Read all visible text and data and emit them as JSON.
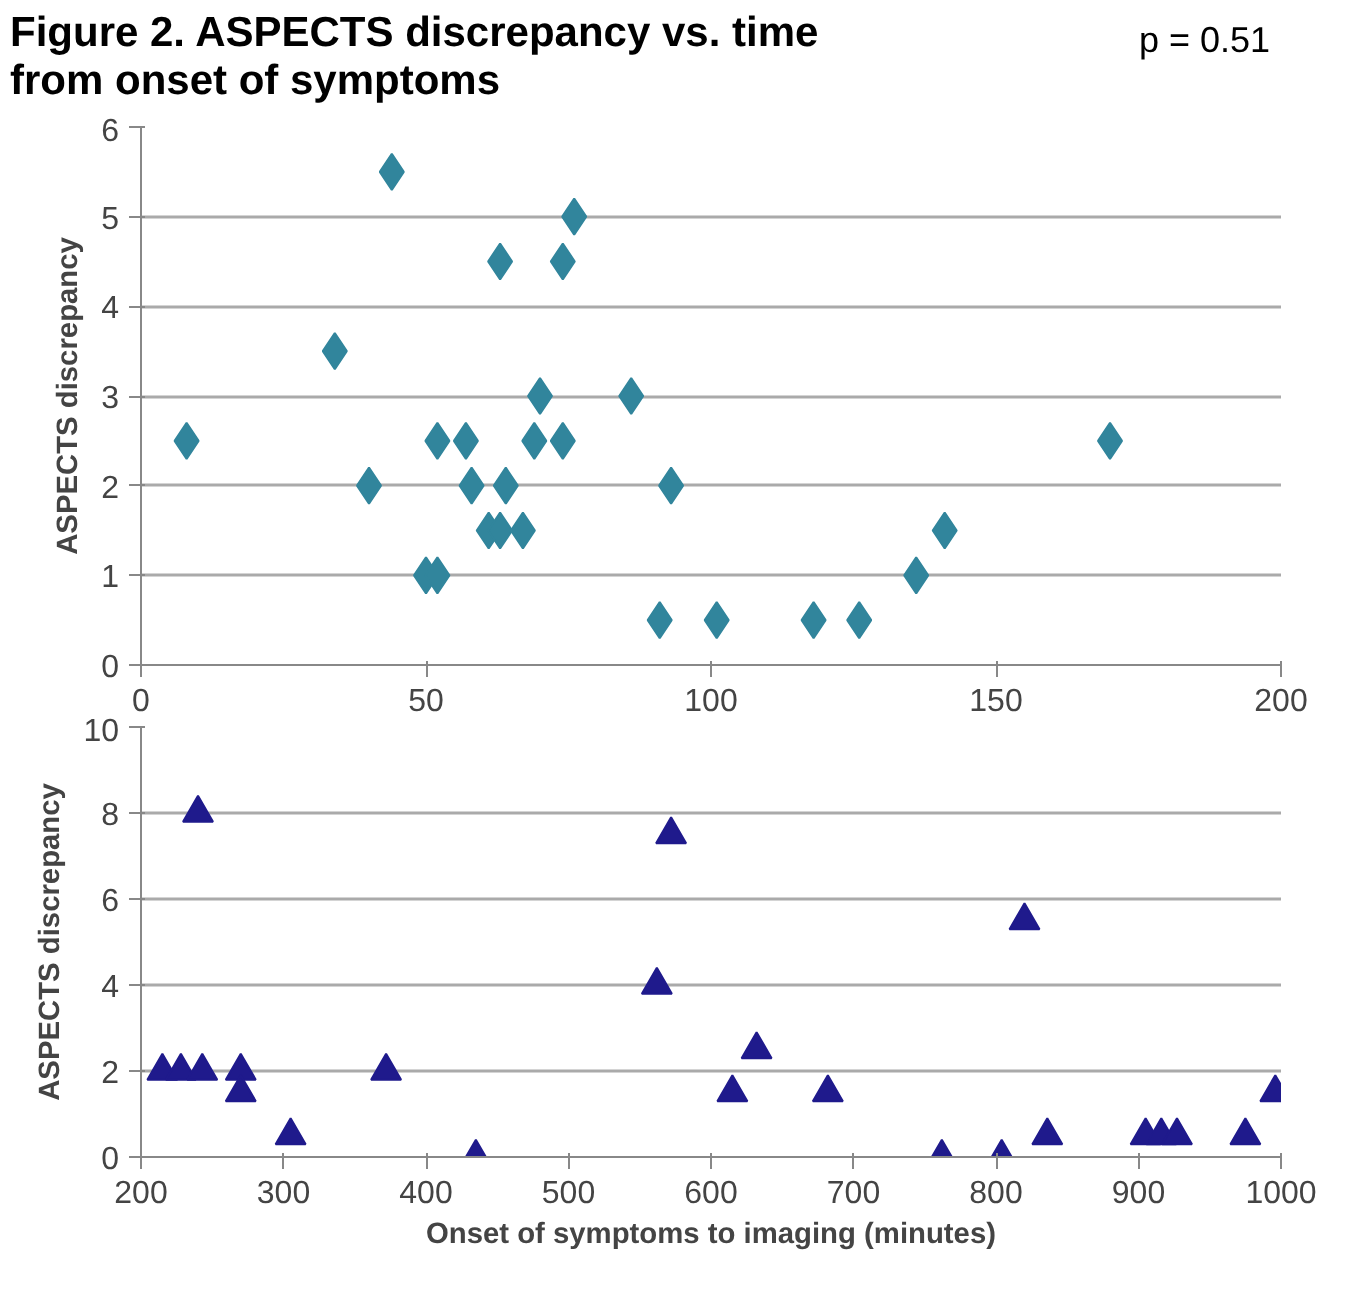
{
  "chart_data": [
    {
      "type": "scatter",
      "title": "Figure 2. ASPECTS discrepancy vs. time from onset of symptoms",
      "ylabel": "ASPECTS discrepancy",
      "annotations": [
        "p = 0.51"
      ],
      "marker": "diamond",
      "grid": "y",
      "x": [
        8,
        34,
        40,
        44,
        50,
        52,
        52,
        57,
        58,
        61,
        63,
        63,
        64,
        67,
        69,
        70,
        74,
        74,
        76,
        86,
        91,
        93,
        101,
        118,
        126,
        136,
        141,
        170
      ],
      "series": [
        {
          "color": "#31859c",
          "values": [
            2.5,
            3.5,
            2,
            5.5,
            1,
            1,
            2.5,
            2.5,
            2,
            1.5,
            1.5,
            4.5,
            2,
            1.5,
            2.5,
            3,
            2.5,
            4.5,
            5,
            3,
            0.5,
            2,
            0.5,
            0.5,
            0.5,
            1,
            1.5,
            2.5
          ]
        }
      ],
      "xlim": [
        0,
        200
      ],
      "xticks": [
        0,
        50,
        100,
        150,
        200
      ],
      "ylim": [
        0,
        6
      ],
      "yticks": [
        0,
        1,
        2,
        3,
        4,
        5,
        6
      ]
    },
    {
      "type": "scatter",
      "xlabel": "Onset of symptoms to imaging (minutes)",
      "ylabel": "ASPECTS discrepancy",
      "marker": "triangle",
      "grid": "y",
      "x": [
        215,
        228,
        243,
        240,
        270,
        270,
        305,
        372,
        435,
        562,
        572,
        615,
        632,
        682,
        762,
        804,
        820,
        836,
        905,
        916,
        927,
        975,
        996
      ],
      "series": [
        {
          "color": "#1f1a8c",
          "values": [
            2,
            2,
            2,
            8,
            2,
            1.5,
            0.5,
            2,
            0,
            4,
            7.5,
            1.5,
            2.5,
            1.5,
            0,
            0,
            5.5,
            0.5,
            0.5,
            0.5,
            0.5,
            0.5,
            1.5
          ]
        }
      ],
      "xlim": [
        200,
        1000
      ],
      "xticks": [
        200,
        300,
        400,
        500,
        600,
        700,
        800,
        900,
        1000
      ],
      "ylim": [
        0,
        10
      ],
      "yticks": [
        0,
        2,
        4,
        6,
        8,
        10
      ]
    }
  ]
}
